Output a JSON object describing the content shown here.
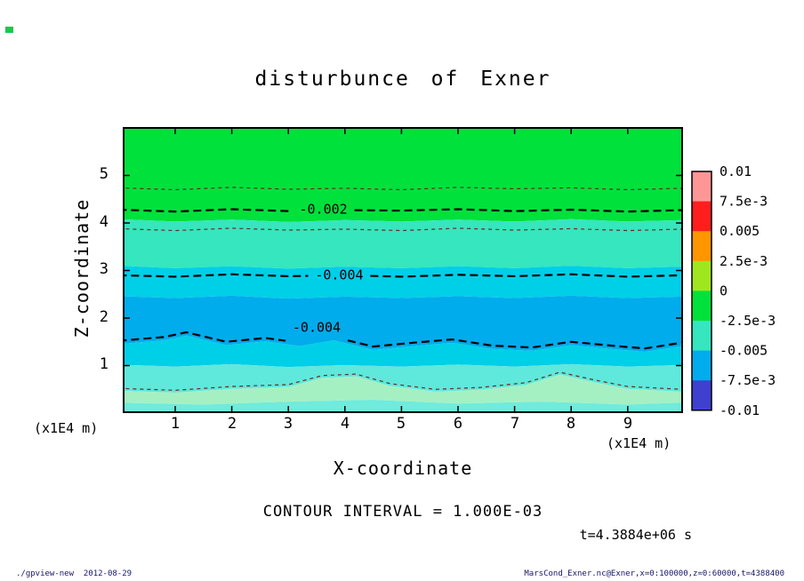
{
  "title": "disturbunce of Exner",
  "axes": {
    "x": {
      "label": "X-coordinate",
      "unit": "(x1E4 m)",
      "ticks": [
        "1",
        "2",
        "3",
        "4",
        "5",
        "6",
        "7",
        "8",
        "9"
      ]
    },
    "y": {
      "label": "Z-coordinate",
      "unit": "(x1E4 m)",
      "ticks": [
        "1",
        "2",
        "3",
        "4",
        "5"
      ]
    }
  },
  "annotations": {
    "contour_interval": "CONTOUR INTERVAL = 1.000E-03",
    "time": "t=4.3884e+06 s"
  },
  "footer": {
    "left": "./gpview-new  2012-08-29",
    "right": "MarsCond_Exner.nc@Exner,x=0:100000,z=0:60000,t=4388400"
  },
  "chart_data": {
    "type": "heatmap",
    "variant": "filled-contour",
    "title": "disturbunce of Exner",
    "xlabel": "X-coordinate",
    "ylabel": "Z-coordinate",
    "axis_unit": "(x1E4 m)",
    "xlim": [
      0,
      9.95
    ],
    "ylim": [
      0,
      6.02
    ],
    "x_ticks": [
      1,
      2,
      3,
      4,
      5,
      6,
      7,
      8,
      9
    ],
    "y_ticks": [
      1,
      2,
      3,
      4,
      5
    ],
    "grid": false,
    "contour_interval": "1.000E-03",
    "time_label": "t=4.3884e+06 s",
    "colorbar": {
      "position": "right",
      "tick_labels": [
        "0.01",
        "7.5e-3",
        "0.005",
        "2.5e-3",
        "0",
        "-2.5e-3",
        "-0.005",
        "-7.5e-3",
        "-0.01"
      ],
      "tick_values": [
        0.01,
        0.0075,
        0.005,
        0.0025,
        0,
        -0.0025,
        -0.005,
        -0.0075,
        -0.01
      ],
      "segment_colors": [
        "#FF9696",
        "#FF1E1E",
        "#FF9600",
        "#A0E61E",
        "#00E13C",
        "#35E6BE",
        "#00ACEC",
        "#4040D0"
      ]
    },
    "fill_bands": {
      "colors": [
        "#00E13C",
        "#35E6BE",
        "#00CFE8",
        "#00ACEC",
        "#00CFE8",
        "#5FE8DC",
        "#A5F0C3",
        "#70EBDC"
      ],
      "boundaries": [
        {
          "x": [
            0,
            1,
            2,
            3,
            4,
            5,
            6,
            7,
            8,
            9,
            9.95
          ],
          "z": [
            4.08,
            4.03,
            4.07,
            4.02,
            4.06,
            4.03,
            4.07,
            4.03,
            4.08,
            4.03,
            4.06
          ]
        },
        {
          "x": [
            0,
            1,
            2,
            3,
            4,
            5,
            6,
            7,
            8,
            9,
            9.95
          ],
          "z": [
            3.1,
            3.05,
            3.09,
            3.04,
            3.08,
            3.05,
            3.09,
            3.05,
            3.1,
            3.05,
            3.08
          ]
        },
        {
          "x": [
            0,
            1,
            2,
            3,
            4,
            5,
            6,
            7,
            8,
            9,
            9.95
          ],
          "z": [
            2.46,
            2.42,
            2.47,
            2.41,
            2.45,
            2.42,
            2.46,
            2.42,
            2.47,
            2.42,
            2.45
          ]
        },
        {
          "x": [
            0,
            0.8,
            1.2,
            1.9,
            2.6,
            3.2,
            3.8,
            4.5,
            5.2,
            5.9,
            6.6,
            7.3,
            8,
            8.7,
            9.3,
            9.95
          ],
          "z": [
            1.45,
            1.53,
            1.63,
            1.43,
            1.51,
            1.41,
            1.53,
            1.33,
            1.41,
            1.48,
            1.35,
            1.31,
            1.43,
            1.35,
            1.29,
            1.41
          ]
        },
        {
          "x": [
            0,
            1,
            2,
            3,
            4,
            5,
            6,
            7,
            8,
            9,
            9.95
          ],
          "z": [
            1.02,
            0.98,
            1.03,
            0.97,
            1.01,
            0.98,
            1.02,
            0.98,
            1.03,
            0.98,
            1.01
          ]
        },
        {
          "x": [
            0,
            1,
            2,
            3,
            3.6,
            4.2,
            4.8,
            5.6,
            6.4,
            7.2,
            7.8,
            8.4,
            9,
            9.95
          ],
          "z": [
            0.47,
            0.43,
            0.51,
            0.55,
            0.74,
            0.77,
            0.57,
            0.45,
            0.49,
            0.59,
            0.81,
            0.65,
            0.51,
            0.45
          ]
        },
        {
          "x": [
            0,
            1.5,
            3,
            4.5,
            6,
            7.5,
            9,
            9.95
          ],
          "z": [
            0.22,
            0.18,
            0.24,
            0.28,
            0.2,
            0.24,
            0.18,
            0.22
          ]
        }
      ]
    },
    "contour_lines": [
      {
        "style": "thin",
        "color": "#6B2A1F",
        "x": [
          0,
          1,
          2,
          3,
          4,
          5,
          6,
          7,
          8,
          9,
          9.95
        ],
        "z": [
          4.74,
          4.7,
          4.75,
          4.71,
          4.73,
          4.7,
          4.75,
          4.72,
          4.74,
          4.7,
          4.73
        ]
      },
      {
        "style": "thick",
        "color": "#000000",
        "label": "-0.002",
        "label_x": 3.62,
        "label_z": 4.29,
        "x": [
          0,
          1,
          2,
          3,
          4,
          5,
          6,
          7,
          8,
          9,
          9.95
        ],
        "z": [
          4.28,
          4.24,
          4.29,
          4.25,
          4.27,
          4.26,
          4.29,
          4.25,
          4.28,
          4.24,
          4.27
        ]
      },
      {
        "style": "thin",
        "color": "#6B2A1F",
        "x": [
          0,
          1,
          2,
          3,
          4,
          5,
          6,
          7,
          8,
          9,
          9.95
        ],
        "z": [
          3.88,
          3.84,
          3.89,
          3.85,
          3.87,
          3.84,
          3.89,
          3.85,
          3.88,
          3.84,
          3.87
        ]
      },
      {
        "style": "thick",
        "color": "#000000",
        "label": "-0.004",
        "label_x": 3.9,
        "label_z": 2.91,
        "x": [
          0,
          1,
          2,
          3,
          4,
          5,
          6,
          7,
          8,
          9,
          9.95
        ],
        "z": [
          2.9,
          2.87,
          2.92,
          2.88,
          2.9,
          2.87,
          2.91,
          2.88,
          2.92,
          2.87,
          2.9
        ]
      },
      {
        "style": "thick",
        "color": "#000000",
        "label": "-0.004",
        "label_x": 3.5,
        "label_z": 1.8,
        "x": [
          0,
          0.8,
          1.2,
          1.9,
          2.6,
          3.2,
          3.8,
          4.5,
          5.2,
          5.9,
          6.6,
          7.3,
          8,
          8.7,
          9.3,
          9.95
        ],
        "z": [
          1.52,
          1.6,
          1.7,
          1.5,
          1.58,
          1.48,
          1.6,
          1.4,
          1.48,
          1.55,
          1.42,
          1.38,
          1.5,
          1.42,
          1.36,
          1.48
        ]
      },
      {
        "style": "thin",
        "color": "#6B2A1F",
        "x": [
          0,
          1,
          2,
          3,
          3.6,
          4.2,
          4.8,
          5.6,
          6.4,
          7.2,
          7.8,
          8.4,
          9,
          9.95
        ],
        "z": [
          0.52,
          0.48,
          0.56,
          0.6,
          0.79,
          0.82,
          0.62,
          0.5,
          0.54,
          0.64,
          0.86,
          0.7,
          0.56,
          0.5
        ]
      }
    ]
  }
}
